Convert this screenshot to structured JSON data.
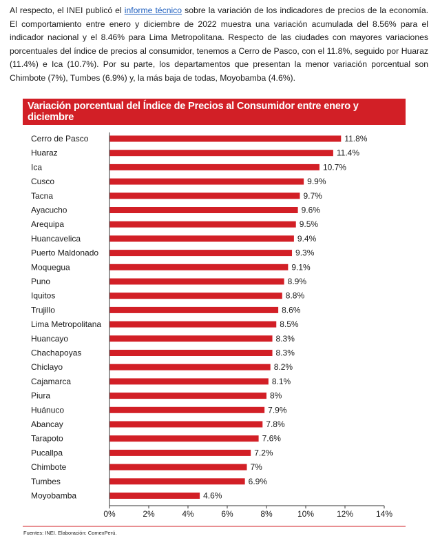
{
  "intro": {
    "before_link": "Al respecto, el INEI publicó el ",
    "link_text": "informe técnico",
    "after_link": " sobre la variación de los indicadores de precios de la economía. El comportamiento entre enero y diciembre de 2022 muestra una variación acumulada del 8.56% para el indicador nacional y el 8.46% para Lima Metropolitana. Respecto de las ciudades con mayores variaciones porcentuales del índice de precios al consumidor, tenemos a Cerro de Pasco, con el 11.8%, seguido por Huaraz (11.4%) e Ica (10.7%). Por su parte, los departamentos que presentan la menor variación porcentual son Chimbote (7%), Tumbes (6.9%) y, la más baja de todas, Moyobamba (4.6%)."
  },
  "source": "Fuentes: INEI. Elaboración: ComexPerú.",
  "colors": {
    "bar": "#d21f26",
    "title_bg": "#d21f26",
    "axis": "#333333"
  },
  "chart_data": {
    "type": "bar",
    "orientation": "horizontal",
    "title": "Variación porcentual del Índice de Precios al Consumidor entre enero y diciembre",
    "categories": [
      "Cerro de Pasco",
      "Huaraz",
      "Ica",
      "Cusco",
      "Tacna",
      "Ayacucho",
      "Arequipa",
      "Huancavelica",
      "Puerto Maldonado",
      "Moquegua",
      "Puno",
      "Iquitos",
      "Trujillo",
      "Lima Metropolitana",
      "Huancayo",
      "Chachapoyas",
      "Chiclayo",
      "Cajamarca",
      "Piura",
      "Huánuco",
      "Abancay",
      "Tarapoto",
      "Pucallpa",
      "Chimbote",
      "Tumbes",
      "Moyobamba"
    ],
    "values": [
      11.8,
      11.4,
      10.7,
      9.9,
      9.7,
      9.6,
      9.5,
      9.4,
      9.3,
      9.1,
      8.9,
      8.8,
      8.6,
      8.5,
      8.3,
      8.3,
      8.2,
      8.1,
      8.0,
      7.9,
      7.8,
      7.6,
      7.2,
      7.0,
      6.9,
      4.6
    ],
    "value_labels": [
      "11.8%",
      "11.4%",
      "10.7%",
      "9.9%",
      "9.7%",
      "9.6%",
      "9.5%",
      "9.4%",
      "9.3%",
      "9.1%",
      "8.9%",
      "8.8%",
      "8.6%",
      "8.5%",
      "8.3%",
      "8.3%",
      "8.2%",
      "8.1%",
      "8%",
      "7.9%",
      "7.8%",
      "7.6%",
      "7.2%",
      "7%",
      "6.9%",
      "4.6%"
    ],
    "xlim": [
      0,
      14
    ],
    "xticks": [
      0,
      2,
      4,
      6,
      8,
      10,
      12,
      14
    ],
    "xtick_labels": [
      "0%",
      "2%",
      "4%",
      "6%",
      "8%",
      "10%",
      "12%",
      "14%"
    ],
    "grid": false,
    "legend": "none"
  }
}
